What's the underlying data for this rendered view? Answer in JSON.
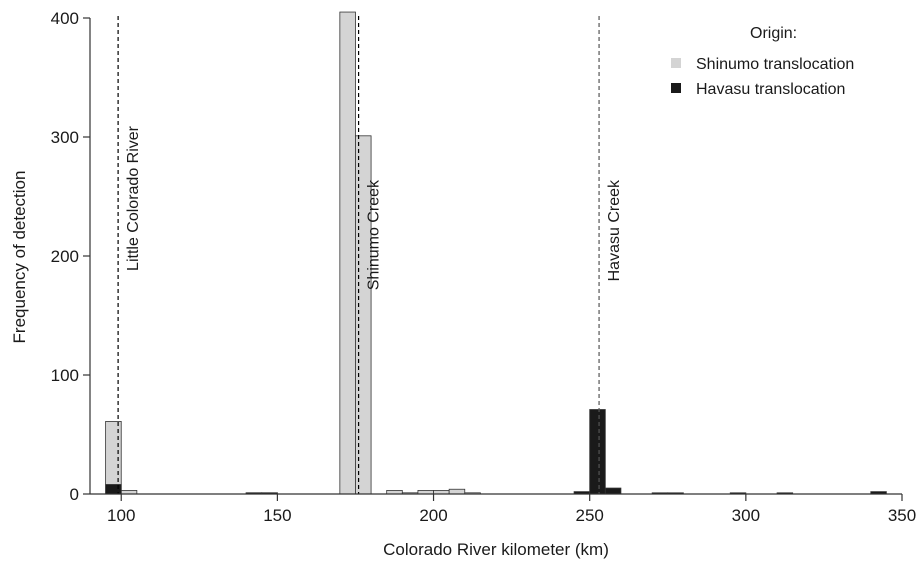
{
  "chart_data": {
    "type": "bar",
    "xlabel": "Colorado River kilometer (km)",
    "ylabel": "Frequency of detection",
    "xlim": [
      90,
      350
    ],
    "ylim": [
      0,
      400
    ],
    "xticks": [
      100,
      150,
      200,
      250,
      300,
      350
    ],
    "yticks": [
      0,
      100,
      200,
      300,
      400
    ],
    "bin_width": 5,
    "grid": false,
    "legend": {
      "title": "Origin:",
      "position": "top-right",
      "entries": [
        "Shinumo translocation",
        "Havasu translocation"
      ]
    },
    "series": [
      {
        "name": "Shinumo translocation",
        "color": "#d4d4d4",
        "bins": [
          {
            "x": 95,
            "value": 61
          },
          {
            "x": 100,
            "value": 3
          },
          {
            "x": 140,
            "value": 1
          },
          {
            "x": 145,
            "value": 1
          },
          {
            "x": 170,
            "value": 405
          },
          {
            "x": 175,
            "value": 301
          },
          {
            "x": 185,
            "value": 3
          },
          {
            "x": 190,
            "value": 1
          },
          {
            "x": 195,
            "value": 3
          },
          {
            "x": 200,
            "value": 3
          },
          {
            "x": 205,
            "value": 4
          },
          {
            "x": 210,
            "value": 1
          }
        ]
      },
      {
        "name": "Havasu translocation",
        "color": "#1a1a1a",
        "bins": [
          {
            "x": 95,
            "value": 8
          },
          {
            "x": 140,
            "value": 1
          },
          {
            "x": 145,
            "value": 1
          },
          {
            "x": 245,
            "value": 2
          },
          {
            "x": 250,
            "value": 71
          },
          {
            "x": 255,
            "value": 5
          },
          {
            "x": 270,
            "value": 1
          },
          {
            "x": 275,
            "value": 1
          },
          {
            "x": 295,
            "value": 1
          },
          {
            "x": 310,
            "value": 1
          },
          {
            "x": 340,
            "value": 2
          }
        ]
      }
    ],
    "reference_lines": [
      {
        "x": 99,
        "label": "Little Colorado River",
        "color": "#000000"
      },
      {
        "x": 176,
        "label": "Shinumo Creek",
        "color": "#000000"
      },
      {
        "x": 253,
        "label": "Havasu Creek",
        "color": "#555555"
      }
    ]
  }
}
